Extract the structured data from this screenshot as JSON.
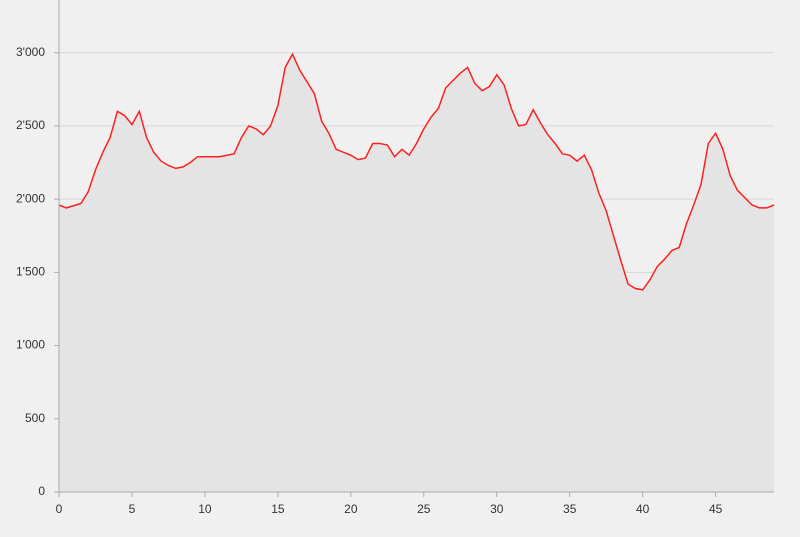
{
  "chart_data": {
    "type": "area",
    "x": [
      0,
      0.5,
      1.5,
      2,
      2.5,
      3,
      3.5,
      4,
      4.5,
      5,
      5.5,
      6,
      6.5,
      7,
      7.5,
      8,
      8.5,
      9,
      9.5,
      10,
      11,
      12,
      12.5,
      13,
      13.5,
      14,
      14.5,
      15,
      15.5,
      16,
      16.5,
      17,
      17.5,
      18,
      18.5,
      19,
      19.5,
      20,
      20.5,
      21,
      21.5,
      22,
      22.5,
      23,
      23.5,
      24,
      24.5,
      25,
      25.5,
      26,
      26.5,
      27,
      27.5,
      28,
      28.5,
      29,
      29.5,
      30,
      30.5,
      31,
      31.5,
      32,
      32.5,
      33,
      33.5,
      34,
      34.5,
      35,
      35.5,
      36,
      36.5,
      37,
      37.5,
      38,
      38.5,
      39,
      39.5,
      40,
      40.5,
      41,
      41.5,
      42,
      42.5,
      43,
      43.5,
      44,
      44.5,
      45,
      45.5,
      46,
      46.5,
      47,
      47.5,
      48,
      48.5,
      49
    ],
    "values": [
      1960,
      1940,
      1970,
      2050,
      2200,
      2320,
      2420,
      2600,
      2570,
      2510,
      2600,
      2420,
      2320,
      2260,
      2230,
      2210,
      2220,
      2250,
      2290,
      2290,
      2290,
      2310,
      2420,
      2500,
      2480,
      2440,
      2500,
      2640,
      2900,
      2990,
      2880,
      2800,
      2720,
      2530,
      2450,
      2340,
      2320,
      2300,
      2270,
      2280,
      2380,
      2380,
      2370,
      2290,
      2340,
      2300,
      2380,
      2480,
      2560,
      2620,
      2760,
      2810,
      2860,
      2900,
      2790,
      2740,
      2770,
      2850,
      2780,
      2620,
      2500,
      2510,
      2610,
      2520,
      2440,
      2380,
      2310,
      2300,
      2260,
      2300,
      2200,
      2040,
      1920,
      1750,
      1580,
      1420,
      1390,
      1380,
      1450,
      1540,
      1590,
      1650,
      1670,
      1830,
      1960,
      2100,
      2380,
      2450,
      2340,
      2160,
      2060,
      2010,
      1960,
      1940,
      1940,
      1960
    ],
    "color": "#ff2020",
    "fill": "#e4e4e4",
    "xlim": [
      0,
      49
    ],
    "xticks": [
      0,
      5,
      10,
      15,
      20,
      25,
      30,
      35,
      40,
      45
    ],
    "ylim": [
      0,
      3360
    ],
    "yticks": [
      0,
      500,
      {
        "value": 1000,
        "label": "1'000"
      },
      {
        "value": 1500,
        "label": "1'500"
      },
      {
        "value": 2000,
        "label": "2'000"
      },
      {
        "value": 2500,
        "label": "2'500"
      },
      {
        "value": 3000,
        "label": "3'000"
      }
    ],
    "grid": true
  }
}
